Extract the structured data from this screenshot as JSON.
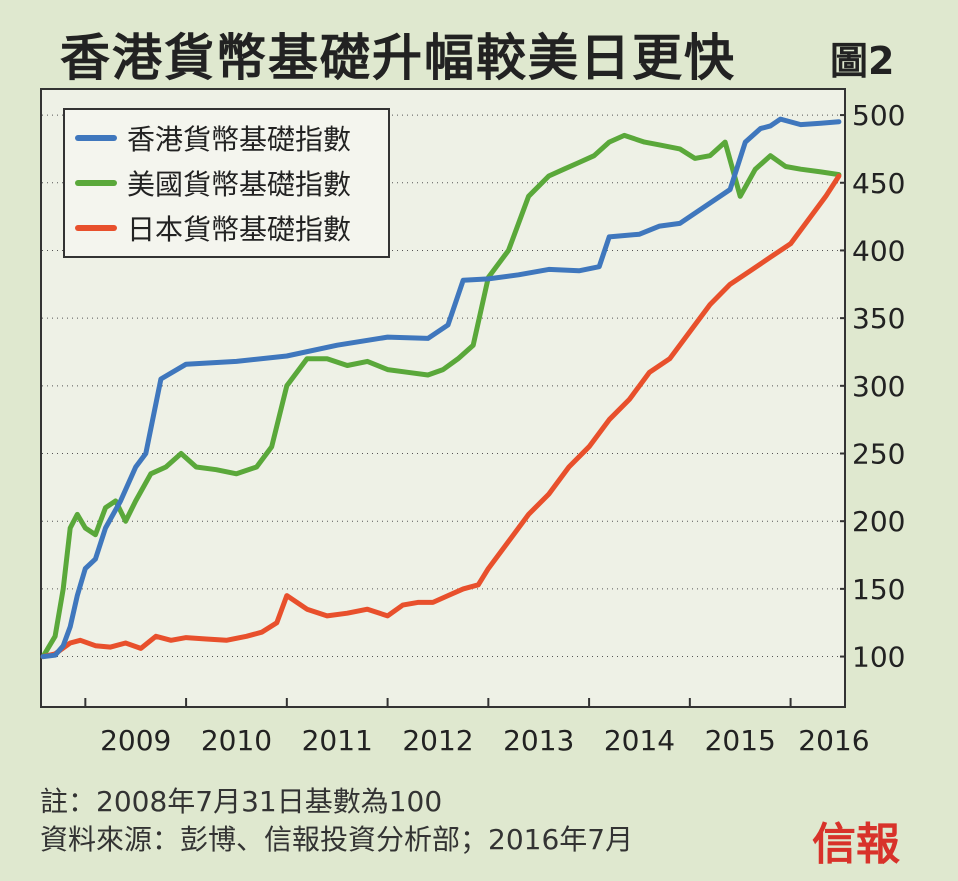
{
  "header": {
    "title": "香港貨幣基礎升幅較美日更快",
    "figure_number": "圖2"
  },
  "footer": {
    "note": "註：2008年7月31日基數為100",
    "source": "資料來源：彭博、信報投資分析部；2016年7月",
    "logo_text": "信報"
  },
  "colors": {
    "hk": "#3f77bd",
    "us": "#5aa83a",
    "jp": "#e8502c"
  },
  "chart_data": {
    "type": "line",
    "title": "香港貨幣基礎升幅較美日更快",
    "xlabel": "",
    "ylabel": "",
    "x_ticks": [
      "2009",
      "2010",
      "2011",
      "2012",
      "2013",
      "2014",
      "2015",
      "2016"
    ],
    "y_ticks": [
      100,
      150,
      200,
      250,
      300,
      350,
      400,
      450,
      500
    ],
    "ylim": [
      62,
      520
    ],
    "xlim": [
      2008.55,
      2016.55
    ],
    "grid": "horizontal dotted",
    "y_axis_side": "right",
    "legend_position": "top-left",
    "series": [
      {
        "name": "香港貨幣基礎指數",
        "color": "#3f77bd",
        "x": [
          2008.58,
          2008.7,
          2008.78,
          2008.85,
          2008.92,
          2009.0,
          2009.1,
          2009.2,
          2009.35,
          2009.5,
          2009.6,
          2009.75,
          2010.0,
          2010.5,
          2011.0,
          2011.5,
          2012.0,
          2012.4,
          2012.6,
          2012.75,
          2013.0,
          2013.3,
          2013.6,
          2013.9,
          2014.1,
          2014.2,
          2014.5,
          2014.7,
          2014.9,
          2015.2,
          2015.4,
          2015.55,
          2015.7,
          2015.8,
          2015.9,
          2016.1,
          2016.3,
          2016.48
        ],
        "values": [
          100,
          101,
          108,
          122,
          145,
          165,
          172,
          195,
          215,
          240,
          250,
          305,
          316,
          318,
          322,
          330,
          336,
          335,
          345,
          378,
          379,
          382,
          386,
          385,
          388,
          410,
          412,
          418,
          420,
          435,
          445,
          480,
          490,
          492,
          497,
          493,
          494,
          495
        ]
      },
      {
        "name": "美國貨幣基礎指數",
        "color": "#5aa83a",
        "x": [
          2008.58,
          2008.7,
          2008.78,
          2008.85,
          2008.92,
          2009.0,
          2009.1,
          2009.2,
          2009.3,
          2009.4,
          2009.5,
          2009.65,
          2009.8,
          2009.95,
          2010.1,
          2010.3,
          2010.5,
          2010.7,
          2010.85,
          2011.0,
          2011.2,
          2011.4,
          2011.6,
          2011.8,
          2012.0,
          2012.2,
          2012.4,
          2012.55,
          2012.7,
          2012.85,
          2013.0,
          2013.2,
          2013.4,
          2013.6,
          2013.75,
          2013.9,
          2014.05,
          2014.2,
          2014.35,
          2014.55,
          2014.7,
          2014.9,
          2015.05,
          2015.2,
          2015.35,
          2015.5,
          2015.65,
          2015.8,
          2015.95,
          2016.1,
          2016.3,
          2016.48
        ],
        "values": [
          100,
          115,
          150,
          195,
          205,
          195,
          190,
          210,
          215,
          200,
          215,
          235,
          240,
          250,
          240,
          238,
          235,
          240,
          255,
          300,
          320,
          320,
          315,
          318,
          312,
          310,
          308,
          312,
          320,
          330,
          380,
          400,
          440,
          455,
          460,
          465,
          470,
          480,
          485,
          480,
          478,
          475,
          468,
          470,
          480,
          440,
          460,
          470,
          462,
          460,
          458,
          456
        ]
      },
      {
        "name": "日本貨幣基礎指數",
        "color": "#e8502c",
        "x": [
          2008.58,
          2008.7,
          2008.85,
          2008.95,
          2009.1,
          2009.25,
          2009.4,
          2009.55,
          2009.7,
          2009.85,
          2010.0,
          2010.2,
          2010.4,
          2010.6,
          2010.75,
          2010.9,
          2011.0,
          2011.2,
          2011.4,
          2011.6,
          2011.8,
          2012.0,
          2012.15,
          2012.3,
          2012.45,
          2012.6,
          2012.75,
          2012.9,
          2013.0,
          2013.2,
          2013.4,
          2013.6,
          2013.8,
          2014.0,
          2014.2,
          2014.4,
          2014.6,
          2014.8,
          2015.0,
          2015.2,
          2015.4,
          2015.6,
          2015.8,
          2016.0,
          2016.2,
          2016.35,
          2016.48
        ],
        "values": [
          100,
          102,
          110,
          112,
          108,
          107,
          110,
          106,
          115,
          112,
          114,
          113,
          112,
          115,
          118,
          125,
          145,
          135,
          130,
          132,
          135,
          130,
          138,
          140,
          140,
          145,
          150,
          153,
          165,
          185,
          205,
          220,
          240,
          255,
          275,
          290,
          310,
          320,
          340,
          360,
          375,
          385,
          395,
          405,
          425,
          440,
          455
        ]
      }
    ]
  }
}
